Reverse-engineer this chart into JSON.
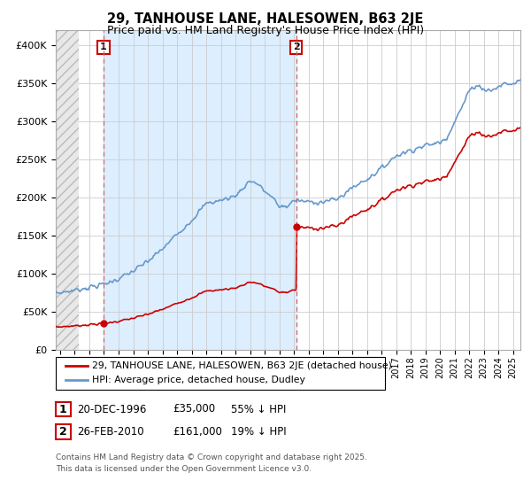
{
  "title": "29, TANHOUSE LANE, HALESOWEN, B63 2JE",
  "subtitle": "Price paid vs. HM Land Registry's House Price Index (HPI)",
  "ylim": [
    0,
    420000
  ],
  "yticks": [
    0,
    50000,
    100000,
    150000,
    200000,
    250000,
    300000,
    350000,
    400000
  ],
  "ytick_labels": [
    "£0",
    "£50K",
    "£100K",
    "£150K",
    "£200K",
    "£250K",
    "£300K",
    "£350K",
    "£400K"
  ],
  "xlim_start": 1993.7,
  "xlim_end": 2025.5,
  "sale1_year": 1996.97,
  "sale1_price": 35000,
  "sale2_year": 2010.15,
  "sale2_price": 161000,
  "legend_line1": "29, TANHOUSE LANE, HALESOWEN, B63 2JE (detached house)",
  "legend_line2": "HPI: Average price, detached house, Dudley",
  "footer1": "Contains HM Land Registry data © Crown copyright and database right 2025.",
  "footer2": "This data is licensed under the Open Government Licence v3.0.",
  "table_row1": [
    "1",
    "20-DEC-1996",
    "£35,000",
    "55% ↓ HPI"
  ],
  "table_row2": [
    "2",
    "26-FEB-2010",
    "£161,000",
    "19% ↓ HPI"
  ],
  "red_color": "#cc0000",
  "hpi_color": "#6699cc",
  "grid_color": "#cccccc",
  "shade_color": "#ddeeff",
  "hatch_color": "#d0d0d0"
}
